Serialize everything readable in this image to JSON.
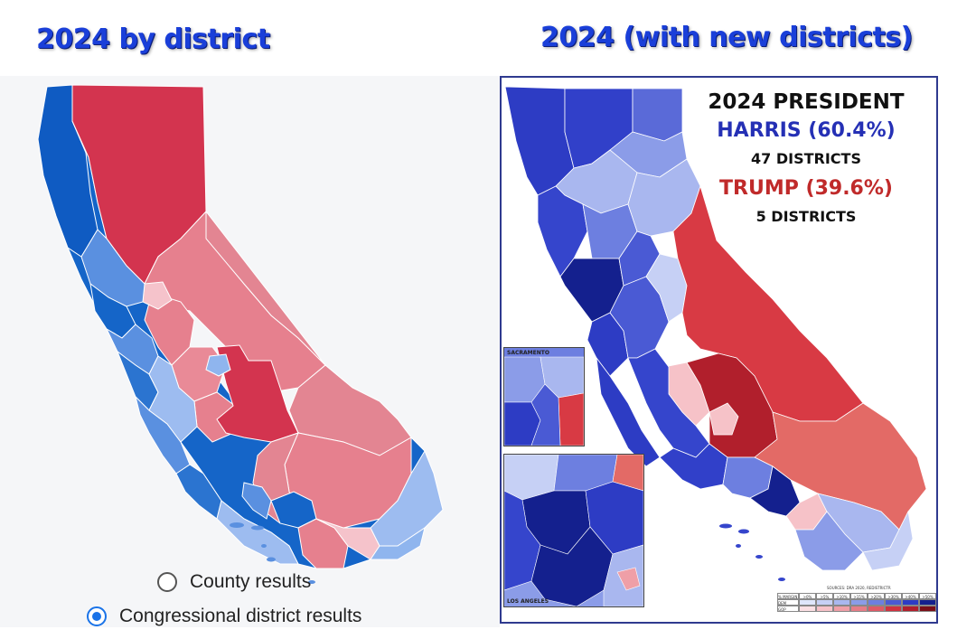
{
  "left_heading": "2024 by district",
  "right_heading": "2024 (with new districts)",
  "left_panel": {
    "options": {
      "county_label": "County results",
      "district_label": "Congressional district results",
      "selected": "district"
    }
  },
  "right_panel": {
    "title": "2024 PRESIDENT",
    "harris": "HARRIS (60.4%)",
    "harris_districts": "47 DISTRICTS",
    "trump": "TRUMP (39.6%)",
    "trump_districts": "5 DISTRICTS",
    "inset_sacramento": "SACRAMENTO",
    "inset_los_angeles": "LOS ANGELES",
    "sources": "SOURCES: DRA 2020, REDISTRICTR",
    "legend": {
      "margin_label": "% MARGIN",
      "dem_label": "DEM",
      "gop_label": "GOP",
      "buckets": [
        ">0%",
        ">5%",
        ">10%",
        ">15%",
        ">20%",
        ">30%",
        ">40%",
        ">50%"
      ],
      "dem_colors": [
        "#dfe6fb",
        "#c6d0f5",
        "#a9b7ef",
        "#8b9ce8",
        "#6d7fe0",
        "#4a5ad4",
        "#2d3cc4",
        "#14208e"
      ],
      "gop_colors": [
        "#fbe0e4",
        "#f6c2c8",
        "#ef9fa7",
        "#e67d87",
        "#de5a66",
        "#cf3340",
        "#b11f2c",
        "#7a0f18"
      ]
    }
  },
  "colors": {
    "heading_blue": "#1a3fd9",
    "safe_dem": "#1565c8",
    "likely_dem": "#5a90e0",
    "lean_dem": "#9dbcf0",
    "safe_rep": "#d3344f",
    "lean_rep": "#e6808e"
  }
}
